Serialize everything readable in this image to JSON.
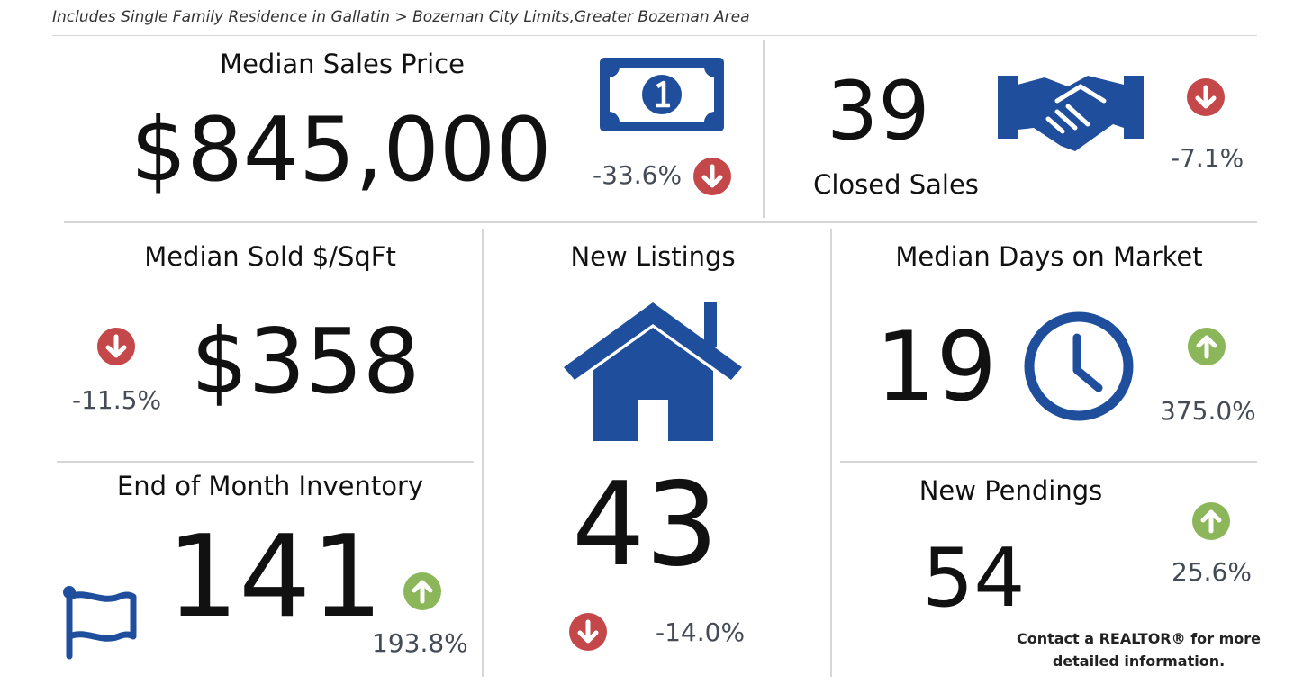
{
  "subtitle": "Includes Single Family Residence in Gallatin > Bozeman City Limits,Greater Bozeman Area",
  "colors": {
    "icon_blue": "#1f4e9c",
    "down_red": "#c4484a",
    "up_green": "#8bb659",
    "divider": "#d6d6d6"
  },
  "median_sales_price": {
    "title": "Median Sales Price",
    "value": "$845,000",
    "change": "-33.6%",
    "direction": "down",
    "icon": "money-bill-icon"
  },
  "closed_sales": {
    "value": "39",
    "title": "Closed Sales",
    "change": "-7.1%",
    "direction": "down",
    "icon": "handshake-icon"
  },
  "median_sold_sqft": {
    "title": "Median Sold $/SqFt",
    "value": "$358",
    "change": "-11.5%",
    "direction": "down"
  },
  "new_listings": {
    "title": "New Listings",
    "value": "43",
    "change": "-14.0%",
    "direction": "down",
    "icon": "house-icon"
  },
  "median_days_on_market": {
    "title": "Median Days on Market",
    "value": "19",
    "change": "375.0%",
    "direction": "up",
    "icon": "clock-icon"
  },
  "end_of_month_inventory": {
    "title": "End of Month Inventory",
    "value": "141",
    "change": "193.8%",
    "direction": "up",
    "icon": "flag-icon"
  },
  "new_pendings": {
    "title": "New Pendings",
    "value": "54",
    "change": "25.6%",
    "direction": "up"
  },
  "footer": {
    "line1": "Contact a REALTOR® for more",
    "line2": "detailed information."
  }
}
